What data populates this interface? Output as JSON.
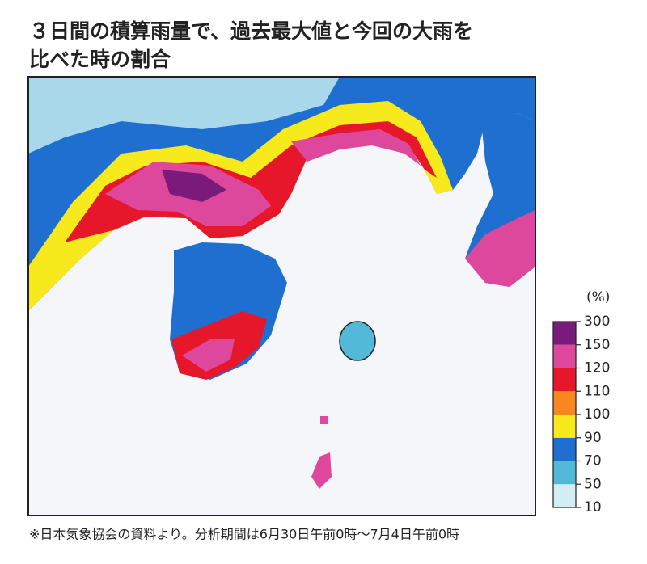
{
  "title_lines": [
    "３日間の積算雨量で、過去最大値と今回の大雨を",
    "比べた時の割合"
  ],
  "legend": {
    "unit": "(%)",
    "ticks": [
      10,
      50,
      70,
      90,
      100,
      110,
      120,
      150,
      300
    ],
    "colors": [
      "#d4edf5",
      "#52b9d9",
      "#1f6fd1",
      "#f6ea1c",
      "#f7871f",
      "#e6162b",
      "#de489c",
      "#7a1b7c"
    ]
  },
  "footnote": "※日本気象協会の資料より。分析期間は6月30日午前0時～7月4日午前0時"
}
